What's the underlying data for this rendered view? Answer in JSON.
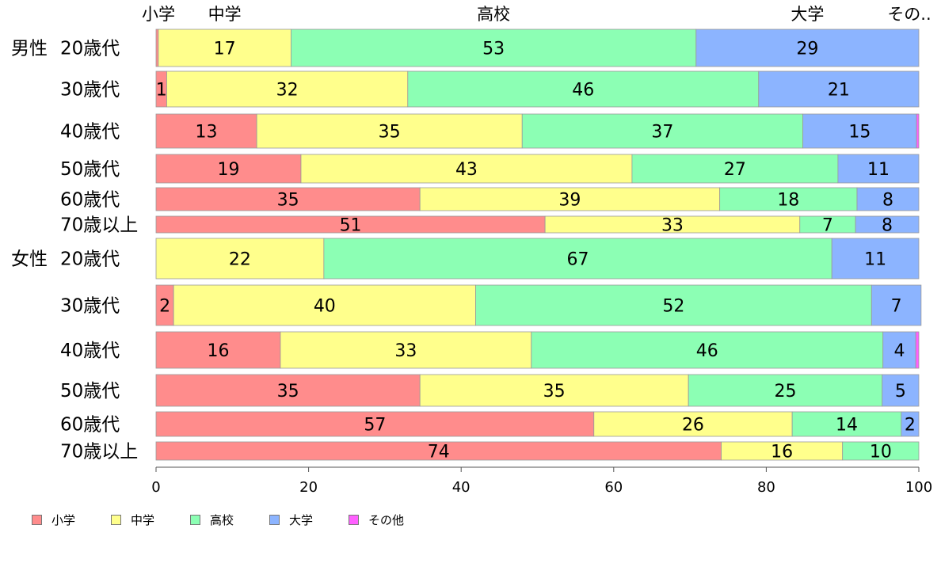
{
  "chart_data": {
    "type": "bar",
    "orientation": "horizontal",
    "stacked": true,
    "xlim": [
      0,
      100
    ],
    "xticks": [
      0,
      20,
      40,
      60,
      80,
      100
    ],
    "top_labels": [
      "小学",
      "中学",
      "高校",
      "大学",
      "その.."
    ],
    "group_labels": [
      "男性",
      "女性"
    ],
    "categories": [
      "20歳代",
      "30歳代",
      "40歳代",
      "50歳代",
      "60歳代",
      "70歳以上",
      "20歳代",
      "30歳代",
      "40歳代",
      "50歳代",
      "60歳代",
      "70歳以上"
    ],
    "series": [
      {
        "name": "小学",
        "color": "#ff8c8c",
        "values": [
          0.3,
          1.4,
          13.2,
          19.0,
          34.6,
          51.0,
          0.0,
          2.3,
          16.3,
          34.6,
          57.4,
          74.1
        ]
      },
      {
        "name": "中学",
        "color": "#ffff8c",
        "values": [
          17.4,
          31.6,
          34.8,
          43.4,
          39.3,
          33.4,
          22.0,
          39.6,
          32.9,
          35.2,
          26.0,
          15.9
        ]
      },
      {
        "name": "高校",
        "color": "#8cffb4",
        "values": [
          53.1,
          46.0,
          36.8,
          27.0,
          18.0,
          7.3,
          66.6,
          51.9,
          46.1,
          25.4,
          14.3,
          10.0
        ]
      },
      {
        "name": "大学",
        "color": "#8cb4ff",
        "values": [
          29.2,
          21.0,
          14.9,
          10.6,
          8.1,
          8.3,
          11.4,
          6.5,
          4.3,
          4.8,
          2.3,
          0.0
        ]
      },
      {
        "name": "その他",
        "color": "#ff60ff",
        "values": [
          0.0,
          0.0,
          0.3,
          0.0,
          0.0,
          0.0,
          0.0,
          0.0,
          0.4,
          0.0,
          0.0,
          0.0
        ]
      }
    ],
    "legend": "bottom"
  }
}
